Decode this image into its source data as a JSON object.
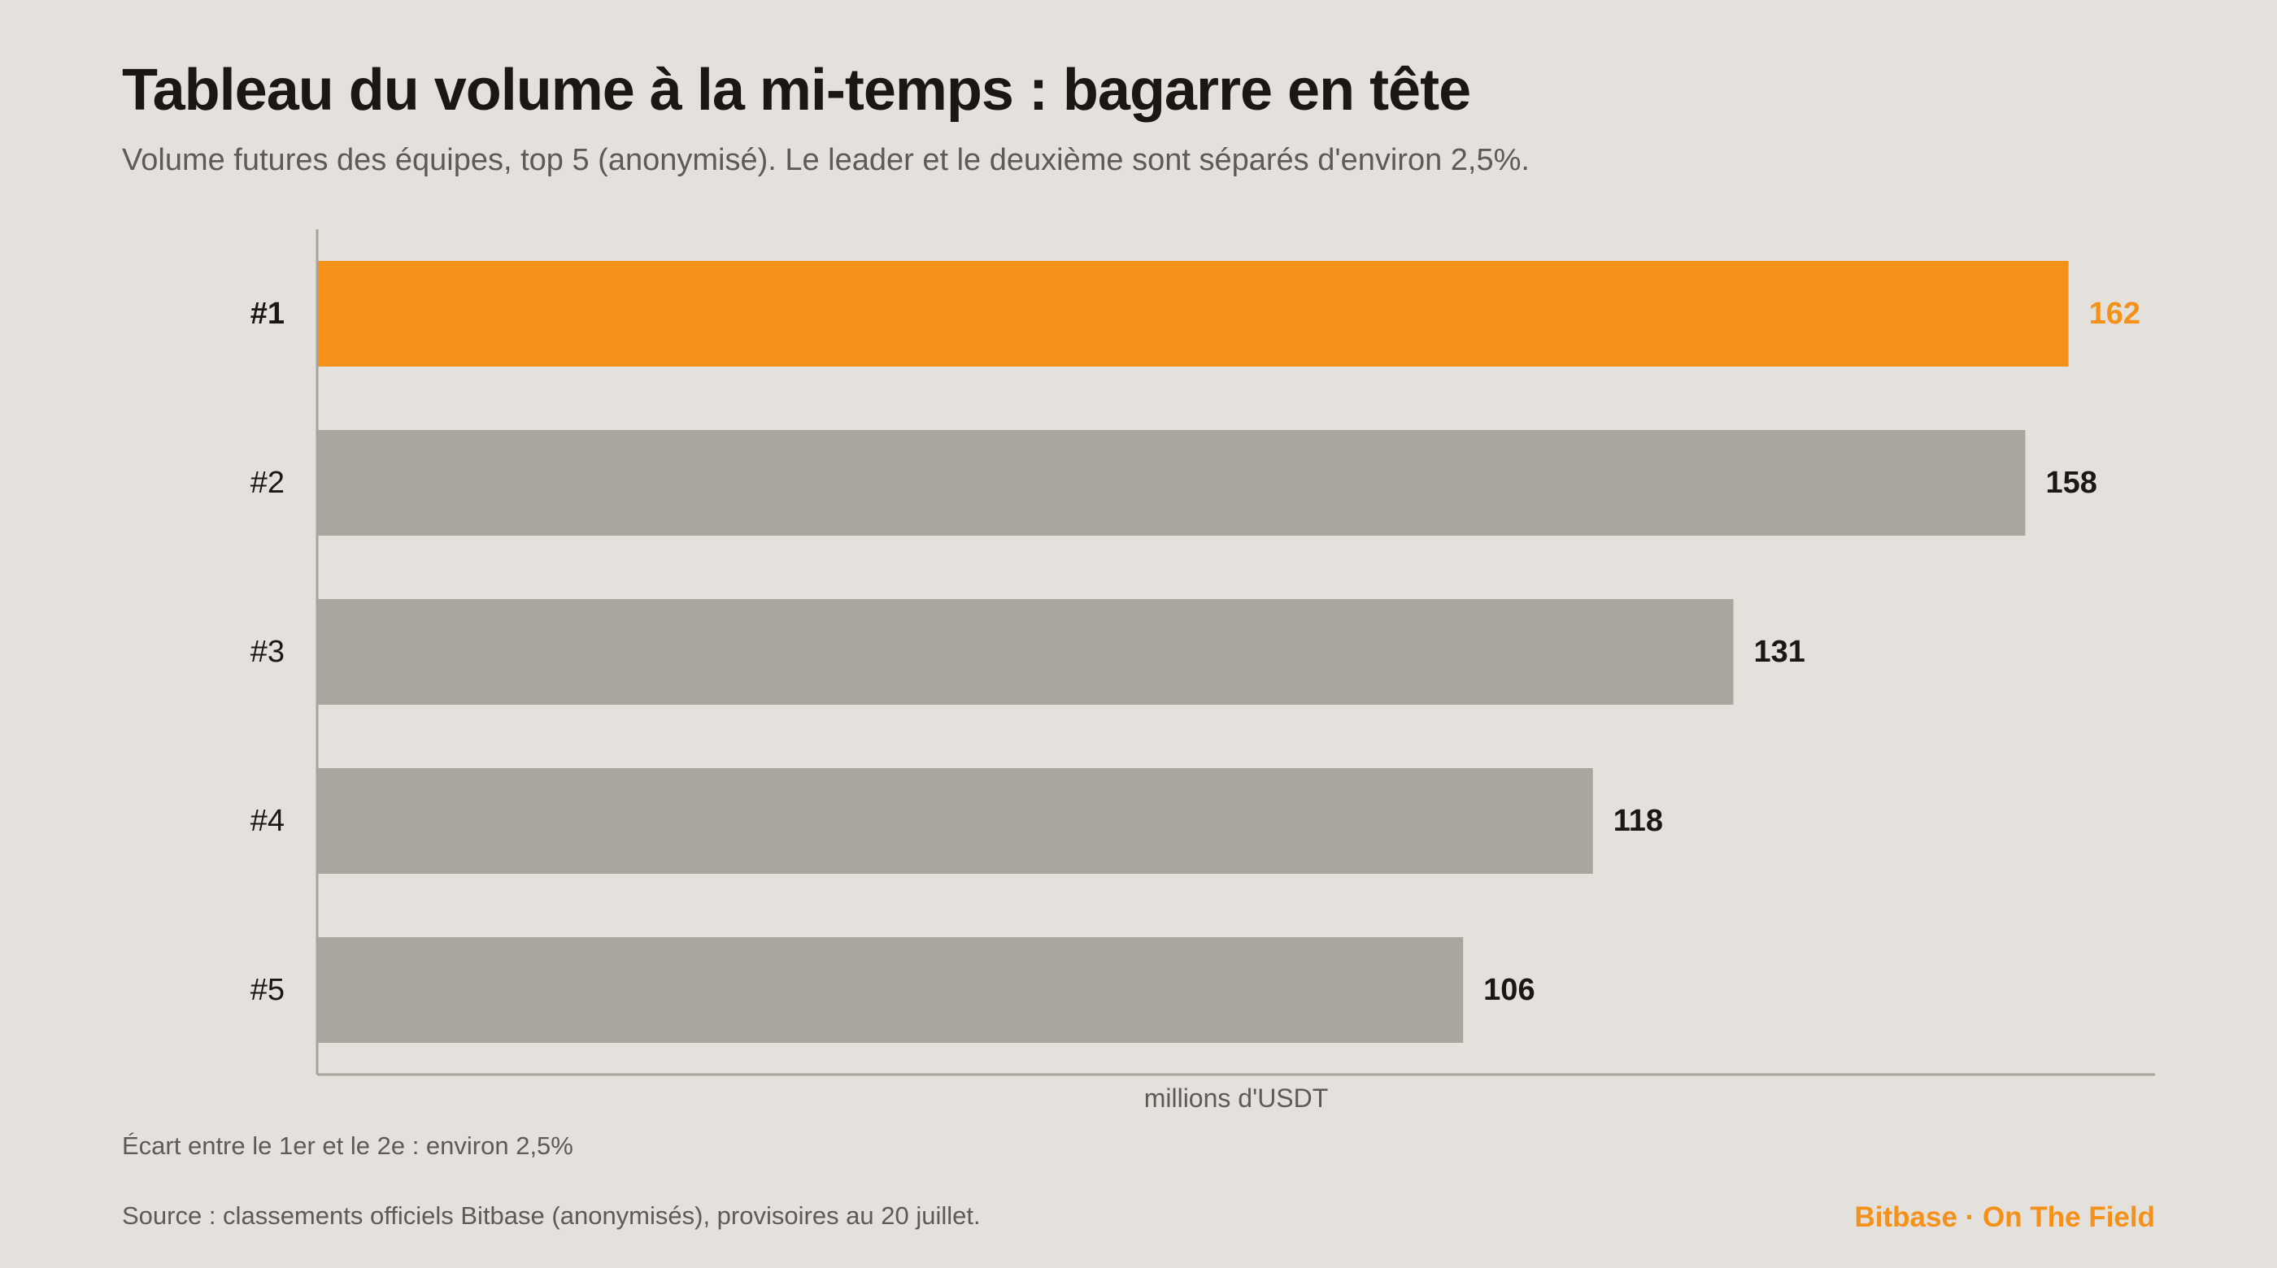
{
  "title": "Tableau du volume à la mi-temps : bagarre en tête",
  "subtitle": "Volume futures des équipes, top 5 (anonymisé). Le leader et le deuxième sont séparés d'environ 2,5%.",
  "note": "Écart entre le 1er et le 2e : environ 2,5%",
  "source": "Source : classements officiels Bitbase (anonymisés), provisoires au 20 juillet.",
  "brand": "Bitbase · On The Field",
  "colors": {
    "background": "#e4e0db",
    "highlight": "#f59019",
    "bar": "#aaa59f",
    "text": "#1a1816",
    "muted": "#5f5a55",
    "axis": "#a8a39d"
  },
  "chart_data": {
    "type": "bar",
    "orientation": "horizontal",
    "categories": [
      "#1",
      "#2",
      "#3",
      "#4",
      "#5"
    ],
    "values": [
      162,
      158,
      131,
      118,
      106
    ],
    "highlight_index": 0,
    "xlabel": "millions d'USDT",
    "ylabel": "",
    "xlim": [
      0,
      170
    ],
    "grid": false,
    "data_labels": true
  }
}
